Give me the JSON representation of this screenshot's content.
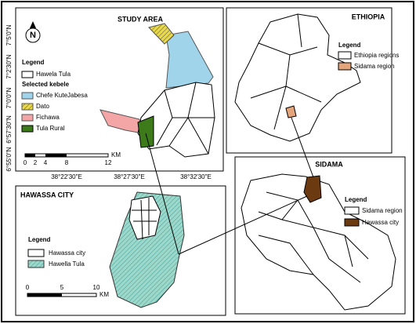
{
  "study_area": {
    "title": "STUDY AREA",
    "legend": {
      "title": "Legend",
      "boundary": "Hawela Tula",
      "subtitle": "Selected kebele",
      "items": [
        "Chefe KuteJabesa",
        "Dato",
        "Fichawa",
        "Tula Rural"
      ]
    },
    "lat_labels": [
      "7°5'0\"N",
      "7°2'30\"N",
      "7°0'0\"N",
      "6°57'30\"N",
      "6°55'0\"N"
    ],
    "lon_labels": [
      "38°22'30\"E",
      "38°27'30\"E",
      "38°32'30\"E"
    ],
    "scale": [
      "0",
      "2",
      "4",
      "8",
      "12"
    ],
    "scale_unit": "KM"
  },
  "ethiopia": {
    "title": "ETHIOPIA",
    "legend": {
      "title": "Legend",
      "items": [
        "Ethiopia regions",
        "Sidama region"
      ]
    }
  },
  "sidama": {
    "title": "SIDAMA",
    "legend": {
      "title": "Legend",
      "items": [
        "Sidama region",
        "Hawassa city"
      ]
    }
  },
  "hawassa": {
    "title": "HAWASSA CITY",
    "legend": {
      "title": "Legend",
      "items": [
        "Hawassa city",
        "Hawella Tula"
      ]
    },
    "scale": [
      "0",
      "5",
      "10"
    ],
    "scale_unit": "KM"
  }
}
